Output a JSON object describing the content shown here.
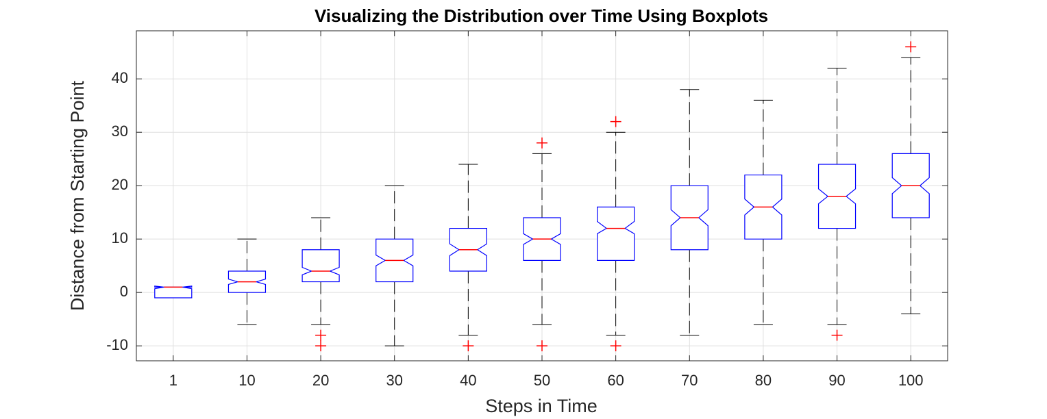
{
  "chart_data": {
    "type": "boxplot",
    "title": "Visualizing the Distribution over Time Using Boxplots",
    "xlabel": "Steps in Time",
    "ylabel": "Distance from Starting Point",
    "categories": [
      "1",
      "10",
      "20",
      "30",
      "40",
      "50",
      "60",
      "70",
      "80",
      "90",
      "100"
    ],
    "boxes": [
      {
        "min": -1,
        "q1": -1,
        "median": 1,
        "q3": 1,
        "max": 1,
        "notch": [
          0.7,
          1.2
        ],
        "outliers": []
      },
      {
        "min": -6,
        "q1": 0,
        "median": 2,
        "q3": 4,
        "max": 10,
        "notch": [
          1.5,
          2.5
        ],
        "outliers": []
      },
      {
        "min": -6,
        "q1": 2,
        "median": 4,
        "q3": 8,
        "max": 14,
        "notch": [
          3.3,
          4.7
        ],
        "outliers": [
          -8,
          -10
        ]
      },
      {
        "min": -10,
        "q1": 2,
        "median": 6,
        "q3": 10,
        "max": 20,
        "notch": [
          5,
          7
        ],
        "outliers": []
      },
      {
        "min": -8,
        "q1": 4,
        "median": 8,
        "q3": 12,
        "max": 24,
        "notch": [
          6.9,
          9.1
        ],
        "outliers": [
          -10
        ]
      },
      {
        "min": -6,
        "q1": 6,
        "median": 10,
        "q3": 14,
        "max": 26,
        "notch": [
          9,
          11
        ],
        "outliers": [
          28,
          -10
        ]
      },
      {
        "min": -8,
        "q1": 6,
        "median": 12,
        "q3": 16,
        "max": 30,
        "notch": [
          11,
          13.3
        ],
        "outliers": [
          32,
          -10
        ]
      },
      {
        "min": -8,
        "q1": 8,
        "median": 14,
        "q3": 20,
        "max": 38,
        "notch": [
          12.5,
          15.5
        ],
        "outliers": []
      },
      {
        "min": -6,
        "q1": 10,
        "median": 16,
        "q3": 22,
        "max": 36,
        "notch": [
          14.5,
          17.5
        ],
        "outliers": []
      },
      {
        "min": -6,
        "q1": 12,
        "median": 18,
        "q3": 24,
        "max": 42,
        "notch": [
          16.6,
          19.4
        ],
        "outliers": [
          -8
        ]
      },
      {
        "min": -4,
        "q1": 14,
        "median": 20,
        "q3": 26,
        "max": 44,
        "notch": [
          18.5,
          21.5
        ],
        "outliers": [
          46
        ]
      }
    ],
    "box_color": "#0000ff",
    "median_color": "#ff0000",
    "whisker_color": "#000000",
    "outlier_color": "#ff0000",
    "ylim": [
      -12.8,
      49
    ],
    "yticks": [
      -10,
      0,
      10,
      20,
      30,
      40
    ],
    "grid": true
  }
}
